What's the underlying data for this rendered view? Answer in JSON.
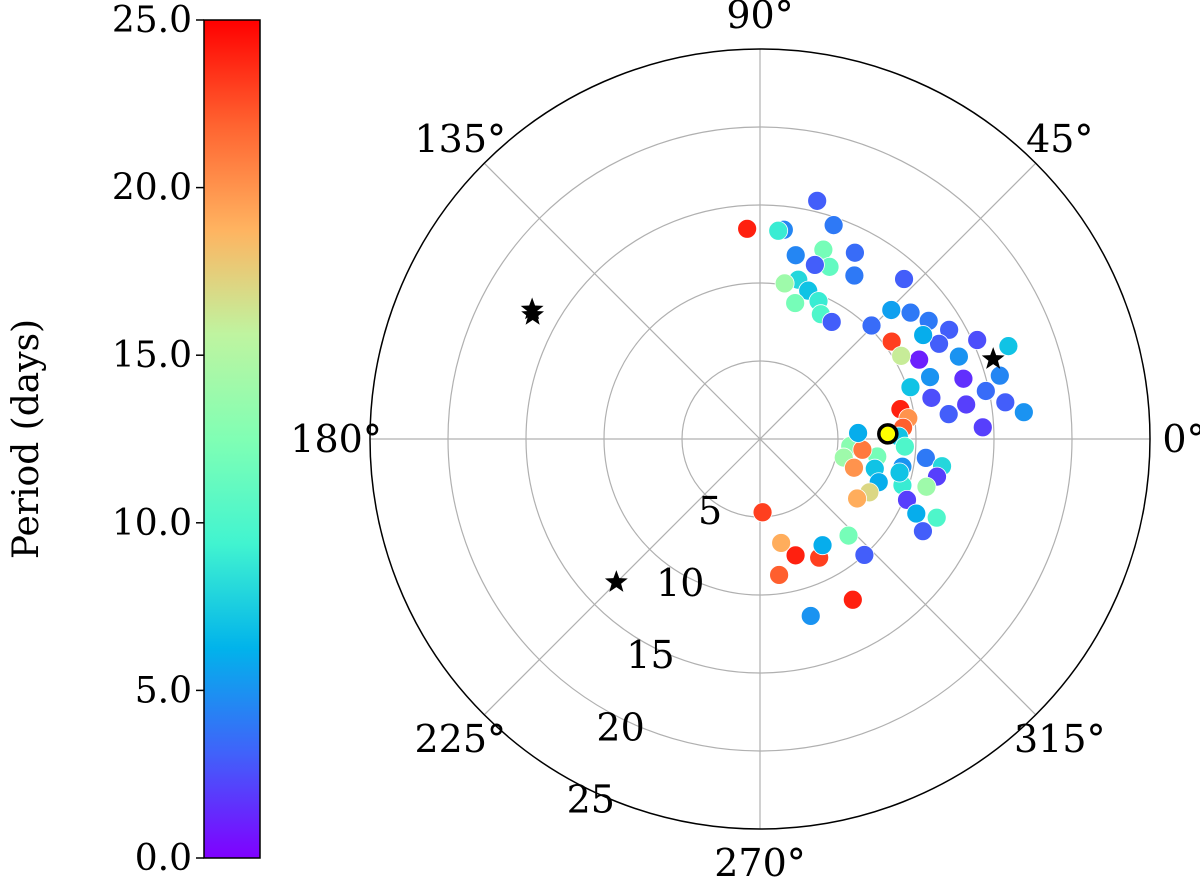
{
  "colorbar": {
    "label": "Period (days)",
    "min": 0,
    "max": 25,
    "ticks": [
      "0.0",
      "5.0",
      "10.0",
      "15.0",
      "20.0",
      "25.0"
    ],
    "colormap": "rainbow",
    "stops": [
      "#8000ff",
      "#4062fa",
      "#01b3eb",
      "#41f4d0",
      "#80ffb4",
      "#bff4a0",
      "#ffb360",
      "#ff6330",
      "#ff0000"
    ]
  },
  "chart_data": {
    "type": "scatter",
    "projection": "polar",
    "grid": true,
    "rmax": 25,
    "angle_tick_labels": [
      "0°",
      "45°",
      "90°",
      "135°",
      "180°",
      "225°",
      "270°",
      "315°"
    ],
    "radial_tick_labels": [
      "5",
      "10",
      "15",
      "20",
      "25"
    ],
    "point_edge_color": "#ffffff",
    "stars": [
      {
        "theta": 18.9,
        "r": 15.8
      },
      {
        "theta": 150.4,
        "r": 16.8
      },
      {
        "theta": 151.4,
        "r": 16.6
      },
      {
        "theta": 224.9,
        "r": 13.0
      }
    ],
    "highlight": {
      "theta": 2.3,
      "r": 8.2,
      "fill": "#ffff00",
      "edge": "#000000"
    },
    "points": [
      {
        "theta": 5.8,
        "r": 17.0,
        "period": 5.0
      },
      {
        "theta": 8.5,
        "r": 15.9,
        "period": 3.0
      },
      {
        "theta": 14.8,
        "r": 15.9,
        "period": 4.5
      },
      {
        "theta": 20.5,
        "r": 17.0,
        "period": 7.0
      },
      {
        "theta": 12.0,
        "r": 14.8,
        "period": 3.5
      },
      {
        "theta": 24.5,
        "r": 15.3,
        "period": 2.5
      },
      {
        "theta": 30.0,
        "r": 14.0,
        "period": 3.0
      },
      {
        "theta": 35.0,
        "r": 13.2,
        "period": 4.0
      },
      {
        "theta": 9.5,
        "r": 13.4,
        "period": 2.0
      },
      {
        "theta": 16.5,
        "r": 13.6,
        "period": 1.5
      },
      {
        "theta": 22.5,
        "r": 13.8,
        "period": 5.0
      },
      {
        "theta": 28.0,
        "r": 13.0,
        "period": 3.0
      },
      {
        "theta": 32.5,
        "r": 12.4,
        "period": 6.0
      },
      {
        "theta": 40.0,
        "r": 12.6,
        "period": 4.0
      },
      {
        "theta": 44.5,
        "r": 11.8,
        "period": 5.5
      },
      {
        "theta": 48.0,
        "r": 13.8,
        "period": 3.0
      },
      {
        "theta": 45.5,
        "r": 10.2,
        "period": 3.5
      },
      {
        "theta": 26.5,
        "r": 11.4,
        "period": 1.0
      },
      {
        "theta": 20.0,
        "r": 11.6,
        "period": 5.0
      },
      {
        "theta": 13.5,
        "r": 11.3,
        "period": 2.5
      },
      {
        "theta": 7.5,
        "r": 12.2,
        "period": 3.0
      },
      {
        "theta": 3.0,
        "r": 14.3,
        "period": 2.0
      },
      {
        "theta": 36.5,
        "r": 10.5,
        "period": 23.0
      },
      {
        "theta": 30.5,
        "r": 10.5,
        "period": 16.0
      },
      {
        "theta": 19.0,
        "r": 10.2,
        "period": 7.0
      },
      {
        "theta": 12.0,
        "r": 9.2,
        "period": 24.0
      },
      {
        "theta": 8.0,
        "r": 9.6,
        "period": 20.0
      },
      {
        "theta": 4.5,
        "r": 9.2,
        "period": 22.0
      },
      {
        "theta": 1.0,
        "r": 8.9,
        "period": 7.0
      },
      {
        "theta": -3.0,
        "r": 9.3,
        "period": 10.0
      },
      {
        "theta": -6.5,
        "r": 10.7,
        "period": 4.0
      },
      {
        "theta": -8.5,
        "r": 11.8,
        "period": 8.0
      },
      {
        "theta": -12.0,
        "r": 11.6,
        "period": 2.0
      },
      {
        "theta": -16.0,
        "r": 11.1,
        "period": 14.0
      },
      {
        "theta": -11.0,
        "r": 9.3,
        "period": 5.0
      },
      {
        "theta": -8.5,
        "r": 7.6,
        "period": 12.0
      },
      {
        "theta": -14.5,
        "r": 7.6,
        "period": 7.0
      },
      {
        "theta": -20.0,
        "r": 8.1,
        "period": 6.0
      },
      {
        "theta": -26.0,
        "r": 7.8,
        "period": 17.0
      },
      {
        "theta": -18.0,
        "r": 9.6,
        "period": 9.0
      },
      {
        "theta": -22.5,
        "r": 10.2,
        "period": 2.0
      },
      {
        "theta": -25.5,
        "r": 11.1,
        "period": 6.0
      },
      {
        "theta": -29.5,
        "r": 12.0,
        "period": 3.0
      },
      {
        "theta": -24.0,
        "r": 12.4,
        "period": 10.0
      },
      {
        "theta": -31.5,
        "r": 7.3,
        "period": 19.0
      },
      {
        "theta": -4.5,
        "r": 5.8,
        "period": 13.0
      },
      {
        "theta": -6.0,
        "r": 6.6,
        "period": 21.0
      },
      {
        "theta": 3.5,
        "r": 6.3,
        "period": 6.0
      },
      {
        "theta": -12.5,
        "r": 5.5,
        "period": 14.0
      },
      {
        "theta": -17.0,
        "r": 6.3,
        "period": 20.0
      },
      {
        "theta": -13.5,
        "r": 9.2,
        "period": 7.0
      },
      {
        "theta": 60.0,
        "r": 12.1,
        "period": 4.0
      },
      {
        "theta": 63.0,
        "r": 13.4,
        "period": 3.5
      },
      {
        "theta": 71.0,
        "r": 14.5,
        "period": 4.0
      },
      {
        "theta": 76.5,
        "r": 15.7,
        "period": 3.0
      },
      {
        "theta": 83.5,
        "r": 13.5,
        "period": 4.5
      },
      {
        "theta": 71.5,
        "r": 12.8,
        "period": 12.0
      },
      {
        "theta": 68.0,
        "r": 11.9,
        "period": 11.0
      },
      {
        "theta": 72.5,
        "r": 11.7,
        "period": 3.0
      },
      {
        "theta": 79.0,
        "r": 12.0,
        "period": 4.5
      },
      {
        "theta": 76.5,
        "r": 10.5,
        "period": 8.0
      },
      {
        "theta": 72.0,
        "r": 10.0,
        "period": 7.0
      },
      {
        "theta": 67.0,
        "r": 9.6,
        "period": 9.0
      },
      {
        "theta": 75.5,
        "r": 9.0,
        "period": 12.0
      },
      {
        "theta": 64.0,
        "r": 8.9,
        "period": 10.0
      },
      {
        "theta": 58.5,
        "r": 8.8,
        "period": 3.0
      },
      {
        "theta": 81.0,
        "r": 10.1,
        "period": 14.0
      },
      {
        "theta": 85.0,
        "r": 13.4,
        "period": 9.0
      },
      {
        "theta": 93.5,
        "r": 13.5,
        "period": 24.0
      },
      {
        "theta": -88.0,
        "r": 4.7,
        "period": 23.0
      },
      {
        "theta": -82.0,
        "r": 8.8,
        "period": 22.0
      },
      {
        "theta": -73.0,
        "r": 7.8,
        "period": 24.0
      },
      {
        "theta": -78.5,
        "r": 6.8,
        "period": 19.0
      },
      {
        "theta": -74.0,
        "r": 11.8,
        "period": 5.0
      },
      {
        "theta": -63.5,
        "r": 8.5,
        "period": 23.0
      },
      {
        "theta": -60.0,
        "r": 11.9,
        "period": 24.0
      },
      {
        "theta": -48.0,
        "r": 10.0,
        "period": 3.0
      },
      {
        "theta": -59.5,
        "r": 7.9,
        "period": 6.0
      },
      {
        "theta": -47.5,
        "r": 8.4,
        "period": 12.0
      }
    ]
  }
}
